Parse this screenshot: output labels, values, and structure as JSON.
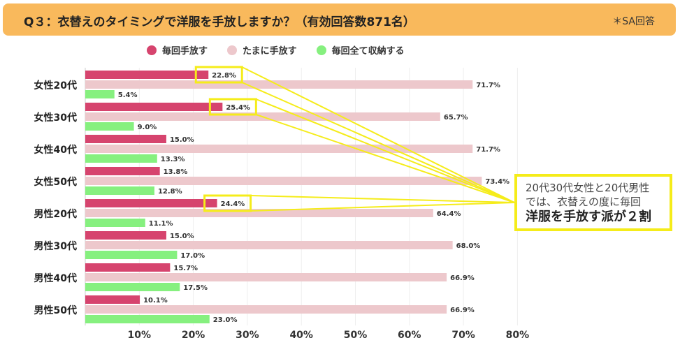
{
  "header": {
    "title": "Q３：衣替えのタイミングで洋服を手放しますか？（有効回答数871名）",
    "note": "＊SA回答"
  },
  "callout": {
    "line1": "20代30代女性と20代男性",
    "line2": "では、衣替えの度に毎回",
    "line3": "洋服を手放す派が２割"
  },
  "chart_data": {
    "type": "bar",
    "orientation": "horizontal",
    "categories": [
      "女性20代",
      "女性30代",
      "女性40代",
      "女性50代",
      "男性20代",
      "男性30代",
      "男性40代",
      "男性50代"
    ],
    "series": [
      {
        "name": "毎回手放す",
        "color": "#d6446e",
        "values": [
          22.8,
          25.4,
          15.0,
          13.8,
          24.4,
          15.0,
          15.7,
          10.1
        ]
      },
      {
        "name": "たまに手放す",
        "color": "#edc8cc",
        "values": [
          71.7,
          65.7,
          71.7,
          73.4,
          64.4,
          68.0,
          66.9,
          66.9
        ]
      },
      {
        "name": "毎回全て収納する",
        "color": "#86f07f",
        "values": [
          5.4,
          9.0,
          13.3,
          12.8,
          11.1,
          17.0,
          17.5,
          23.0
        ]
      }
    ],
    "xlim": [
      0,
      80
    ],
    "xticks": [
      "10%",
      "20%",
      "30%",
      "40%",
      "50%",
      "60%",
      "70%",
      "80%"
    ],
    "legend": "top",
    "highlighted": [
      {
        "category": "女性20代",
        "series": "毎回手放す"
      },
      {
        "category": "女性30代",
        "series": "毎回手放す"
      },
      {
        "category": "男性20代",
        "series": "毎回手放す"
      }
    ],
    "highlight_color": "#f5ec1a"
  }
}
